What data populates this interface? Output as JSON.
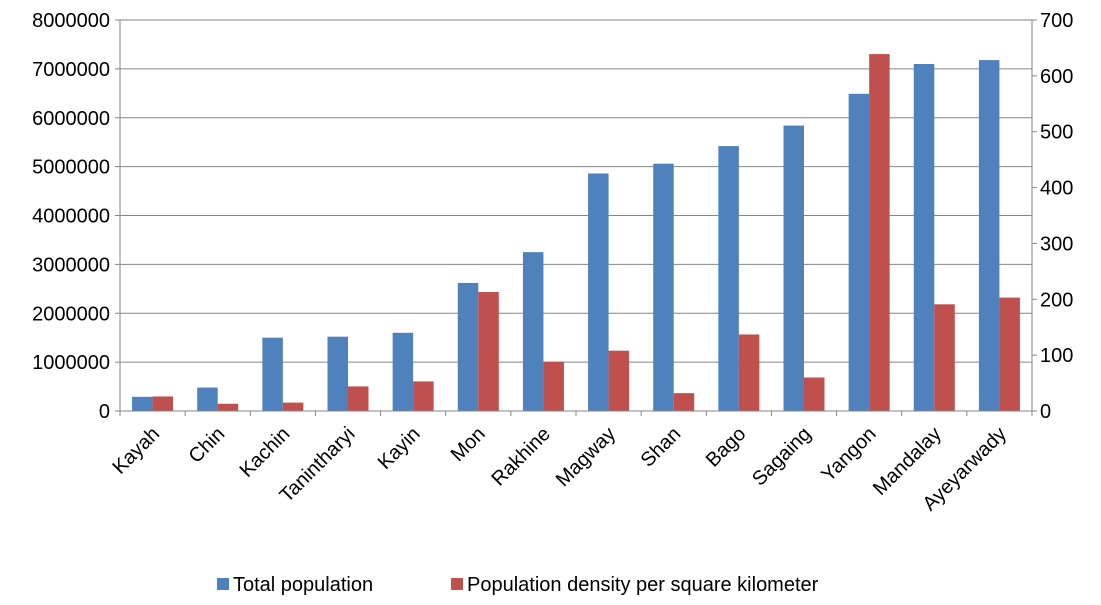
{
  "chart_data": {
    "type": "bar",
    "categories": [
      "Kayah",
      "Chin",
      "Kachin",
      "Tanintharyi",
      "Kayin",
      "Mon",
      "Rakhine",
      "Magway",
      "Shan",
      "Bago",
      "Sagaing",
      "Yangon",
      "Mandalay",
      "Ayeyarwady"
    ],
    "series": [
      {
        "name": "Total population",
        "axis": "left",
        "color": "#4F81BD",
        "values": [
          290000,
          480000,
          1500000,
          1520000,
          1600000,
          2620000,
          3250000,
          4860000,
          5060000,
          5420000,
          5840000,
          6490000,
          7100000,
          7180000
        ]
      },
      {
        "name": "Population density per square kilometer",
        "axis": "right",
        "color": "#C0504D",
        "values": [
          26,
          13,
          15,
          44,
          53,
          213,
          88,
          108,
          32,
          137,
          60,
          639,
          191,
          203
        ]
      }
    ],
    "y_left": {
      "ylim": [
        0,
        8000000
      ],
      "ticks": [
        "0",
        "1000000",
        "2000000",
        "3000000",
        "4000000",
        "5000000",
        "6000000",
        "7000000",
        "8000000"
      ]
    },
    "y_right": {
      "ylim": [
        0,
        700
      ],
      "ticks": [
        "0",
        "100",
        "200",
        "300",
        "400",
        "500",
        "600",
        "700"
      ]
    },
    "grid": true,
    "legend_position": "bottom"
  }
}
